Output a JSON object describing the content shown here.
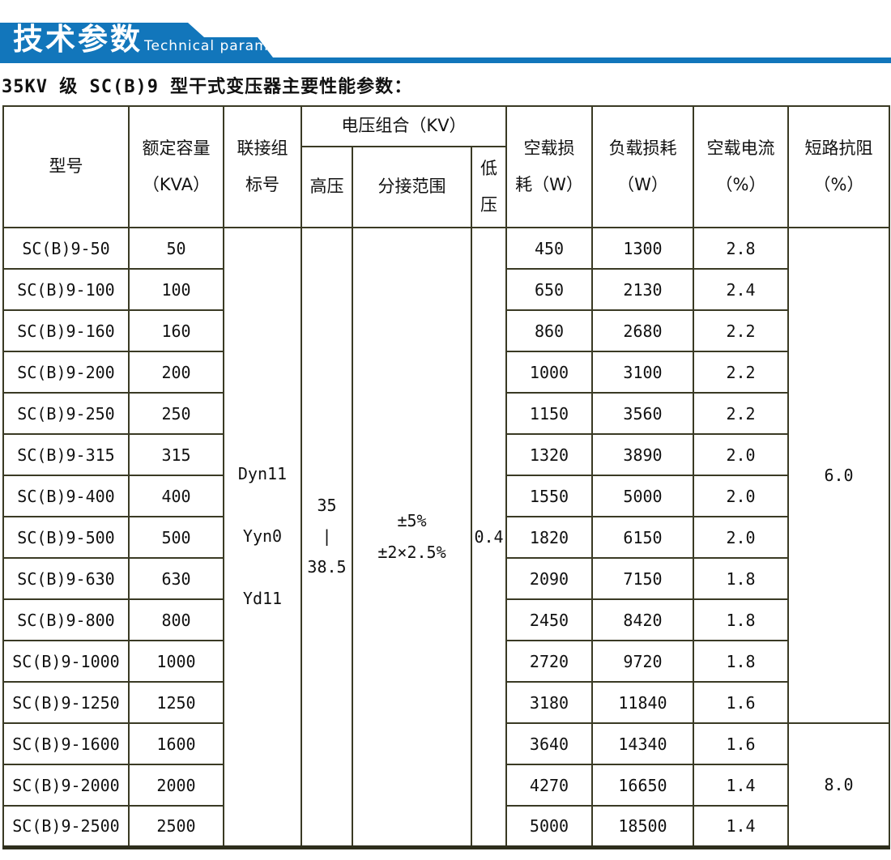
{
  "banner": {
    "title_zh": "技术参数",
    "title_en": "Technical parameter",
    "color": "#1276bb"
  },
  "page_title": "35KV 级 SC(B)9 型干式变压器主要性能参数：",
  "table": {
    "header": {
      "model": "型号",
      "capacity": "额定容量\n（KVA）",
      "vector_group": "联接组\n标号",
      "voltage_combo": "电压组合（KV）",
      "hv": "高压",
      "tap_range": "分接范围",
      "lv": "低\n压",
      "no_load_loss": "空载损\n耗（W）",
      "load_loss": "负载损耗\n（W）",
      "no_load_current": "空载电流\n（%）",
      "impedance": "短路抗阻\n（%）"
    },
    "merged": {
      "vector_groups": [
        "Dyn11",
        "Yyn0",
        "Yd11"
      ],
      "hv_lines": [
        "35",
        "|",
        "38.5"
      ],
      "tap_lines": [
        "±5%",
        "±2×2.5%"
      ],
      "lv": "0.4"
    },
    "impedance_groups": [
      {
        "value": "6.0",
        "span": 12
      },
      {
        "value": "8.0",
        "span": 3
      }
    ],
    "rows": [
      {
        "model": "SC(B)9-50",
        "capacity": "50",
        "no_load_loss": "450",
        "load_loss": "1300",
        "no_load_current": "2.8"
      },
      {
        "model": "SC(B)9-100",
        "capacity": "100",
        "no_load_loss": "650",
        "load_loss": "2130",
        "no_load_current": "2.4"
      },
      {
        "model": "SC(B)9-160",
        "capacity": "160",
        "no_load_loss": "860",
        "load_loss": "2680",
        "no_load_current": "2.2"
      },
      {
        "model": "SC(B)9-200",
        "capacity": "200",
        "no_load_loss": "1000",
        "load_loss": "3100",
        "no_load_current": "2.2"
      },
      {
        "model": "SC(B)9-250",
        "capacity": "250",
        "no_load_loss": "1150",
        "load_loss": "3560",
        "no_load_current": "2.2"
      },
      {
        "model": "SC(B)9-315",
        "capacity": "315",
        "no_load_loss": "1320",
        "load_loss": "3890",
        "no_load_current": "2.0"
      },
      {
        "model": "SC(B)9-400",
        "capacity": "400",
        "no_load_loss": "1550",
        "load_loss": "5000",
        "no_load_current": "2.0"
      },
      {
        "model": "SC(B)9-500",
        "capacity": "500",
        "no_load_loss": "1820",
        "load_loss": "6150",
        "no_load_current": "2.0"
      },
      {
        "model": "SC(B)9-630",
        "capacity": "630",
        "no_load_loss": "2090",
        "load_loss": "7150",
        "no_load_current": "1.8"
      },
      {
        "model": "SC(B)9-800",
        "capacity": "800",
        "no_load_loss": "2450",
        "load_loss": "8420",
        "no_load_current": "1.8"
      },
      {
        "model": "SC(B)9-1000",
        "capacity": "1000",
        "no_load_loss": "2720",
        "load_loss": "9720",
        "no_load_current": "1.8"
      },
      {
        "model": "SC(B)9-1250",
        "capacity": "1250",
        "no_load_loss": "3180",
        "load_loss": "11840",
        "no_load_current": "1.6"
      },
      {
        "model": "SC(B)9-1600",
        "capacity": "1600",
        "no_load_loss": "3640",
        "load_loss": "14340",
        "no_load_current": "1.6"
      },
      {
        "model": "SC(B)9-2000",
        "capacity": "2000",
        "no_load_loss": "4270",
        "load_loss": "16650",
        "no_load_current": "1.4"
      },
      {
        "model": "SC(B)9-2500",
        "capacity": "2500",
        "no_load_loss": "5000",
        "load_loss": "18500",
        "no_load_current": "1.4"
      }
    ]
  }
}
